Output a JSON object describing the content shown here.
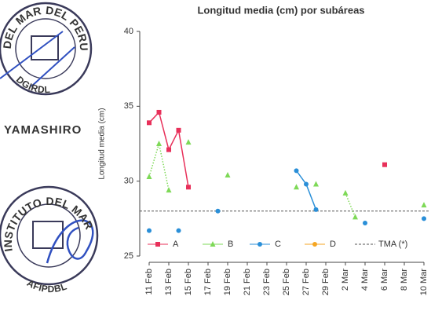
{
  "stamps": [
    {
      "ring": "DEL MAR DEL PERU",
      "bottom": "DGIRDL"
    },
    {
      "ring": "INSTITUTO DEL MAR DEL PERU",
      "bottom": "AFIPDBL"
    }
  ],
  "signature": "YAMASHIRO",
  "chart_data": {
    "type": "line",
    "title": "Longitud media (cm) por subáreas",
    "y_label": "Longitud media (cm)",
    "ylim": [
      25,
      40
    ],
    "yticks": [
      25,
      30,
      35,
      40
    ],
    "xlim": [
      "11 Feb",
      "10 Mar"
    ],
    "xticks": [
      "11 Feb",
      "13 Feb",
      "15 Feb",
      "17 Feb",
      "19 Feb",
      "21 Feb",
      "23 Feb",
      "25 Feb",
      "27 Feb",
      "29 Feb",
      "2 Mar",
      "4 Mar",
      "6 Mar",
      "8 Mar",
      "10 Mar"
    ],
    "series": [
      {
        "name": "A",
        "color": "#e8305a",
        "marker": "square",
        "dash": "solid",
        "x": [
          "11 Feb",
          "12 Feb",
          "13 Feb",
          "14 Feb",
          "15 Feb",
          null,
          "6 Mar"
        ],
        "values": [
          33.9,
          34.6,
          32.1,
          33.4,
          29.6,
          null,
          31.1
        ]
      },
      {
        "name": "B",
        "color": "#7ed957",
        "marker": "triangle",
        "dash": "dotted",
        "x": [
          "11 Feb",
          "12 Feb",
          "13 Feb",
          null,
          "15 Feb",
          null,
          "19 Feb",
          null,
          "26 Feb",
          null,
          "28 Feb",
          null,
          "2 Mar",
          "3 Mar",
          null,
          "10 Mar"
        ],
        "values": [
          30.3,
          32.5,
          29.4,
          null,
          32.6,
          null,
          30.4,
          null,
          29.6,
          null,
          29.8,
          null,
          29.2,
          27.6,
          null,
          28.4
        ]
      },
      {
        "name": "C",
        "color": "#2a8fd8",
        "marker": "circle",
        "dash": "solid",
        "x": [
          "11 Feb",
          null,
          "14 Feb",
          null,
          "18 Feb",
          null,
          "26 Feb",
          "27 Feb",
          "28 Feb",
          null,
          "4 Mar",
          null,
          "10 Mar"
        ],
        "values": [
          26.7,
          null,
          26.7,
          null,
          28.0,
          null,
          30.7,
          29.8,
          28.1,
          null,
          27.2,
          null,
          27.5
        ]
      },
      {
        "name": "D",
        "color": "#f5a623",
        "marker": "circle",
        "dash": "solid",
        "x": [],
        "values": []
      }
    ],
    "reference_line": {
      "name": "TMA (*)",
      "value": 28,
      "color": "#555"
    }
  }
}
